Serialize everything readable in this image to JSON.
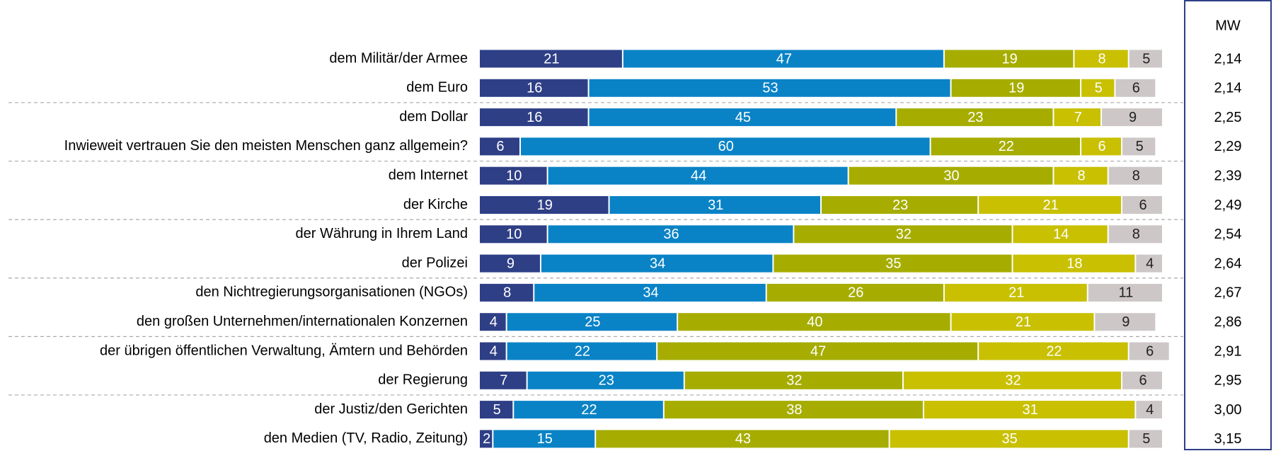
{
  "chart_data": {
    "type": "bar",
    "orientation": "horizontal",
    "stacked": true,
    "categories": [
      "dem Militär/der Armee",
      "dem Euro",
      "dem Dollar",
      "Inwieweit vertrauen Sie den meisten Menschen ganz allgemein?",
      "dem Internet",
      "der Kirche",
      "der Währung in Ihrem Land",
      "der Polizei",
      "den Nichtregierungsorganisationen (NGOs)",
      "den großen Unternehmen/internationalen Konzernen",
      "der übrigen öffentlichen Verwaltung, Ämtern und Behörden",
      "der Regierung",
      "der Justiz/den Gerichten",
      "den Medien (TV, Radio, Zeitung)"
    ],
    "series": [
      {
        "color": "#2e3f86",
        "label_color": "#ffffff",
        "values": [
          21,
          16,
          16,
          6,
          10,
          19,
          10,
          9,
          8,
          4,
          4,
          7,
          5,
          2
        ]
      },
      {
        "color": "#0a83c6",
        "label_color": "#ffffff",
        "values": [
          47,
          53,
          45,
          60,
          44,
          31,
          36,
          34,
          34,
          25,
          22,
          23,
          22,
          15
        ]
      },
      {
        "color": "#a6ad00",
        "label_color": "#ffffff",
        "values": [
          19,
          19,
          23,
          22,
          30,
          23,
          32,
          35,
          26,
          40,
          47,
          32,
          38,
          43
        ]
      },
      {
        "color": "#c8c000",
        "label_color": "#ffffff",
        "values": [
          8,
          5,
          7,
          6,
          8,
          21,
          14,
          18,
          21,
          21,
          22,
          32,
          31,
          35
        ]
      },
      {
        "color": "#cdc7c7",
        "label_color": "#222222",
        "values": [
          5,
          6,
          9,
          5,
          8,
          6,
          8,
          4,
          11,
          9,
          6,
          6,
          4,
          5
        ]
      }
    ],
    "xlim": [
      0,
      100
    ],
    "mw": {
      "title": "MW",
      "values": [
        2.14,
        2.14,
        2.25,
        2.29,
        2.39,
        2.49,
        2.54,
        2.64,
        2.67,
        2.86,
        2.91,
        2.95,
        3.0,
        3.15
      ],
      "value_labels": [
        "2,14",
        "2,14",
        "2,25",
        "2,29",
        "2,39",
        "2,49",
        "2,54",
        "2,64",
        "2,67",
        "2,86",
        "2,91",
        "2,95",
        "3,00",
        "3,15"
      ]
    }
  }
}
